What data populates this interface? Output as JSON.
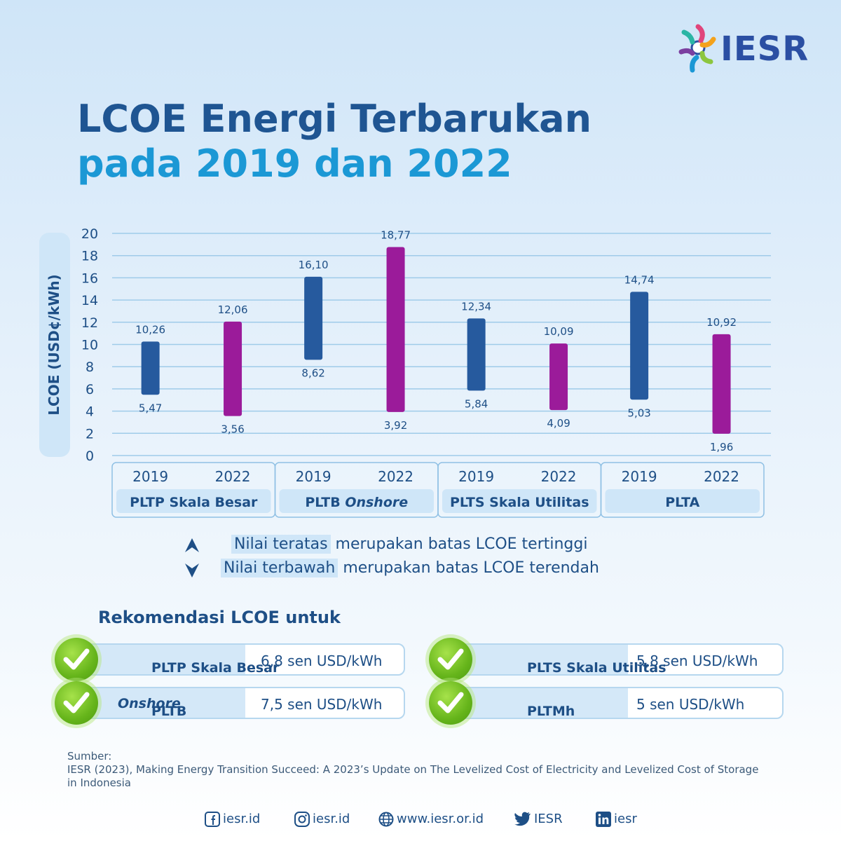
{
  "brand": {
    "logo_text": "IESR"
  },
  "title": {
    "line1": "LCOE Energi Terbarukan",
    "line2": "pada 2019 dan 2022"
  },
  "chart_data": {
    "type": "bar",
    "subtype": "floating range bar (low–high)",
    "ylabel": "LCOE (USD¢/kWh)",
    "ylim": [
      0,
      20
    ],
    "yticks": [
      0,
      2,
      4,
      6,
      8,
      10,
      12,
      14,
      16,
      18,
      20
    ],
    "grid": true,
    "groups": [
      {
        "name": "PLTP Skala Besar",
        "name_italic": "",
        "bars": [
          {
            "year": "2019",
            "low": 5.47,
            "high": 10.26,
            "low_label": "5,47",
            "high_label": "10,26"
          },
          {
            "year": "2022",
            "low": 3.56,
            "high": 12.06,
            "low_label": "3,56",
            "high_label": "12,06"
          }
        ]
      },
      {
        "name": "PLTB ",
        "name_italic": "Onshore",
        "bars": [
          {
            "year": "2019",
            "low": 8.62,
            "high": 16.1,
            "low_label": "8,62",
            "high_label": "16,10"
          },
          {
            "year": "2022",
            "low": 3.92,
            "high": 18.77,
            "low_label": "3,92",
            "high_label": "18,77"
          }
        ]
      },
      {
        "name": "PLTS Skala Utilitas",
        "name_italic": "",
        "bars": [
          {
            "year": "2019",
            "low": 5.84,
            "high": 12.34,
            "low_label": "5,84",
            "high_label": "12,34"
          },
          {
            "year": "2022",
            "low": 4.09,
            "high": 10.09,
            "low_label": "4,09",
            "high_label": "10,09"
          }
        ]
      },
      {
        "name": "PLTA",
        "name_italic": "",
        "bars": [
          {
            "year": "2019",
            "low": 5.03,
            "high": 14.74,
            "low_label": "5,03",
            "high_label": "14,74"
          },
          {
            "year": "2022",
            "low": 1.96,
            "high": 10.92,
            "low_label": "1,96",
            "high_label": "10,92"
          }
        ]
      }
    ],
    "colors": {
      "2019": "#265a9e",
      "2022": "#9b1b9a",
      "grid": "#9fcbe9"
    }
  },
  "legend": {
    "top_highlight": "Nilai teratas",
    "top_rest": " merupakan batas LCOE tertinggi",
    "bottom_highlight": "Nilai terbawah",
    "bottom_rest": " merupakan batas LCOE terendah"
  },
  "recommendations": {
    "title": "Rekomendasi LCOE untuk",
    "items": [
      {
        "name": "PLTP Skala Besar",
        "name_italic": "",
        "value": "6,8 sen USD/kWh"
      },
      {
        "name": "PLTS Skala Utilitas",
        "name_italic": "",
        "value": "5,8 sen USD/kWh"
      },
      {
        "name": "PLTB ",
        "name_italic": "Onshore",
        "value": "7,5 sen USD/kWh"
      },
      {
        "name": "PLTMh",
        "name_italic": "",
        "value": "5 sen USD/kWh"
      }
    ]
  },
  "source": {
    "label": "Sumber:",
    "text": "IESR (2023), Making Energy Transition Succeed: A 2023’s Update on The Levelized Cost of Electricity and Levelized Cost of Storage in Indonesia"
  },
  "footer": {
    "facebook": "iesr.id",
    "instagram": "iesr.id",
    "website": "www.iesr.or.id",
    "twitter": "IESR",
    "linkedin": "iesr"
  }
}
